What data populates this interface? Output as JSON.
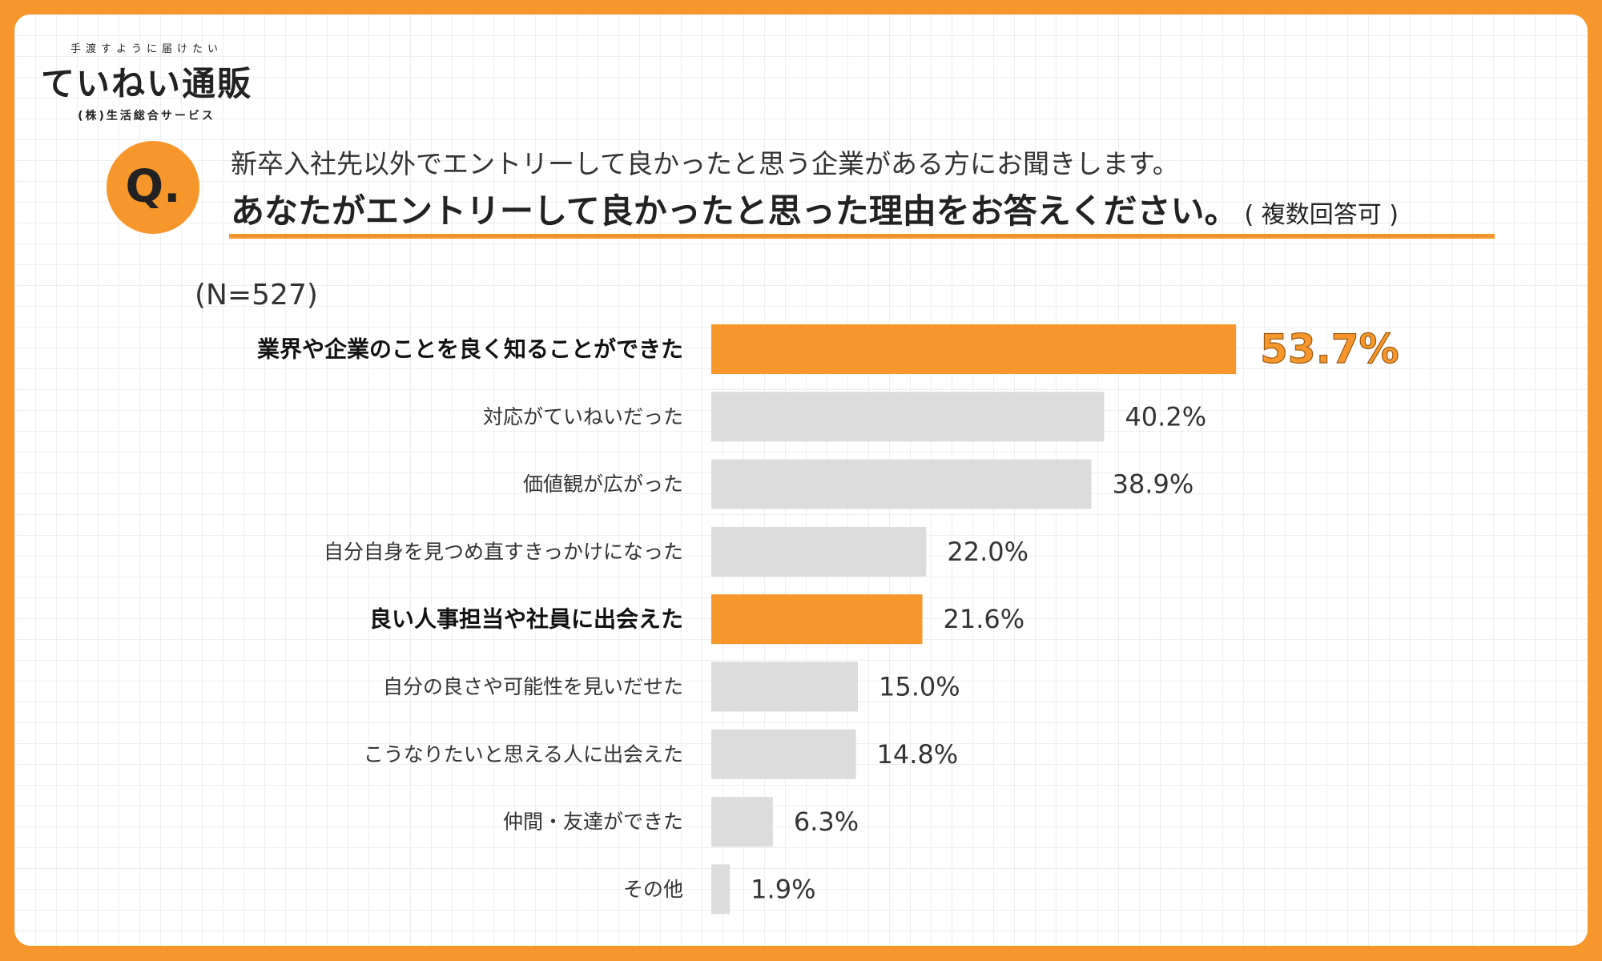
{
  "logo": {
    "tagline": "手渡すように届けたい",
    "name": "ていねい通販",
    "company": "(株)生活総合サービス"
  },
  "question": {
    "mark": "Q.",
    "line1": "新卒入社先以外でエントリーして良かったと思う企業がある方にお聞きします。",
    "line2": "あなたがエントリーして良かったと思った理由をお答えください。",
    "note": "( 複数回答可 )"
  },
  "sample_size": "(N=527)",
  "colors": {
    "highlight": "#f7962b",
    "default": "#dcdcdc",
    "border": "#f7962b"
  },
  "chart_data": {
    "type": "bar",
    "orientation": "horizontal",
    "title": "あなたがエントリーして良かったと思った理由をお答えください。",
    "categories": [
      "業界や企業のことを良く知ることができた",
      "対応がていねいだった",
      "価値観が広がった",
      "自分自身を見つめ直すきっかけになった",
      "良い人事担当や社員に出会えた",
      "自分の良さや可能性を見いだせた",
      "こうなりたいと思える人に出会えた",
      "仲間・友達ができた",
      "その他"
    ],
    "values": [
      53.7,
      40.2,
      38.9,
      22.0,
      21.6,
      15.0,
      14.8,
      6.3,
      1.9
    ],
    "value_labels": [
      "53.7%",
      "40.2%",
      "38.9%",
      "22.0%",
      "21.6%",
      "15.0%",
      "14.8%",
      "6.3%",
      "1.9%"
    ],
    "highlighted": [
      true,
      false,
      false,
      false,
      true,
      false,
      false,
      false,
      false
    ],
    "unit": "%",
    "xlim": [
      0,
      100
    ],
    "grid": false
  }
}
